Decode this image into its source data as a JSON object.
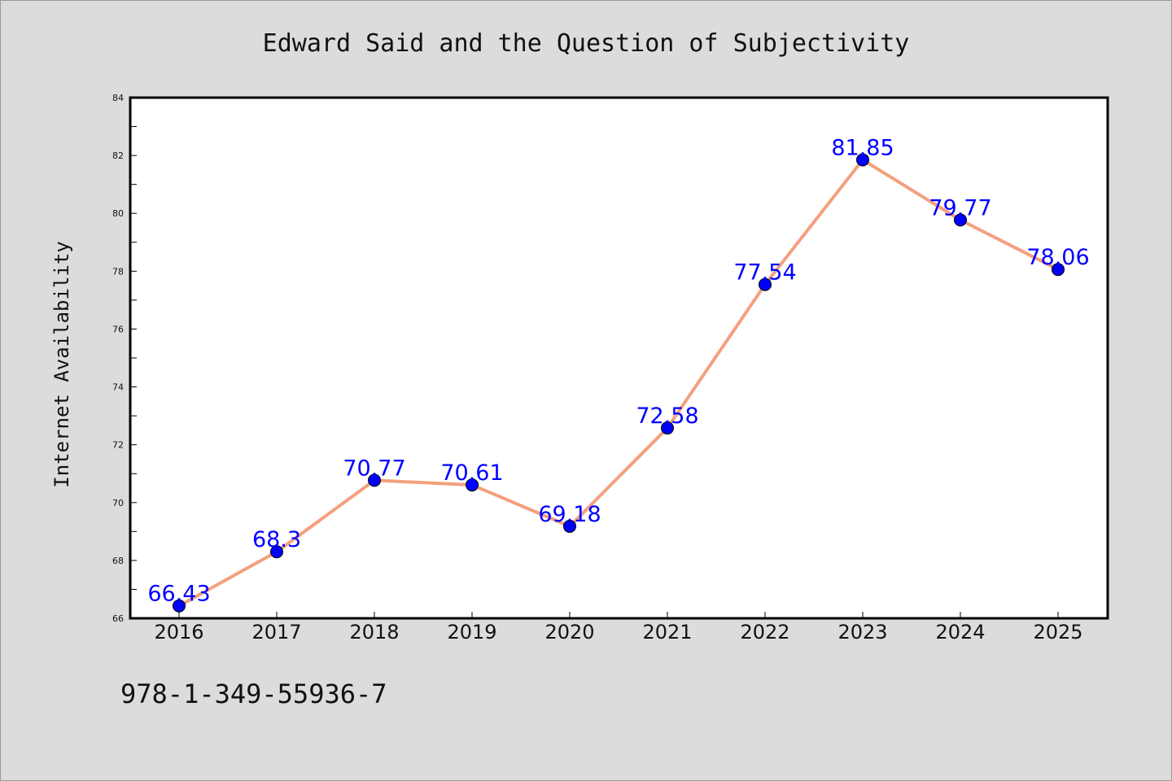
{
  "chart_data": {
    "type": "line",
    "title": "Edward Said and the Question of Subjectivity",
    "xlabel": "",
    "ylabel": "Internet Availability",
    "categories": [
      "2016",
      "2017",
      "2018",
      "2019",
      "2020",
      "2021",
      "2022",
      "2023",
      "2024",
      "2025"
    ],
    "values": [
      66.43,
      68.3,
      70.77,
      70.61,
      69.18,
      72.58,
      77.54,
      81.85,
      79.77,
      78.06
    ],
    "data_labels": [
      "66.43",
      "68.3",
      "70.77",
      "70.61",
      "69.18",
      "72.58",
      "77.54",
      "81.85",
      "79.77",
      "78.06"
    ],
    "ylim": [
      66,
      84
    ],
    "yticks": [
      66,
      68,
      70,
      72,
      74,
      76,
      78,
      80,
      82,
      84
    ],
    "grid": false,
    "legend": "none",
    "line_color": "#f4a07e",
    "marker_color": "#0000ff",
    "label_color": "#0000ff"
  },
  "footer": {
    "isbn": "978-1-349-55936-7"
  }
}
